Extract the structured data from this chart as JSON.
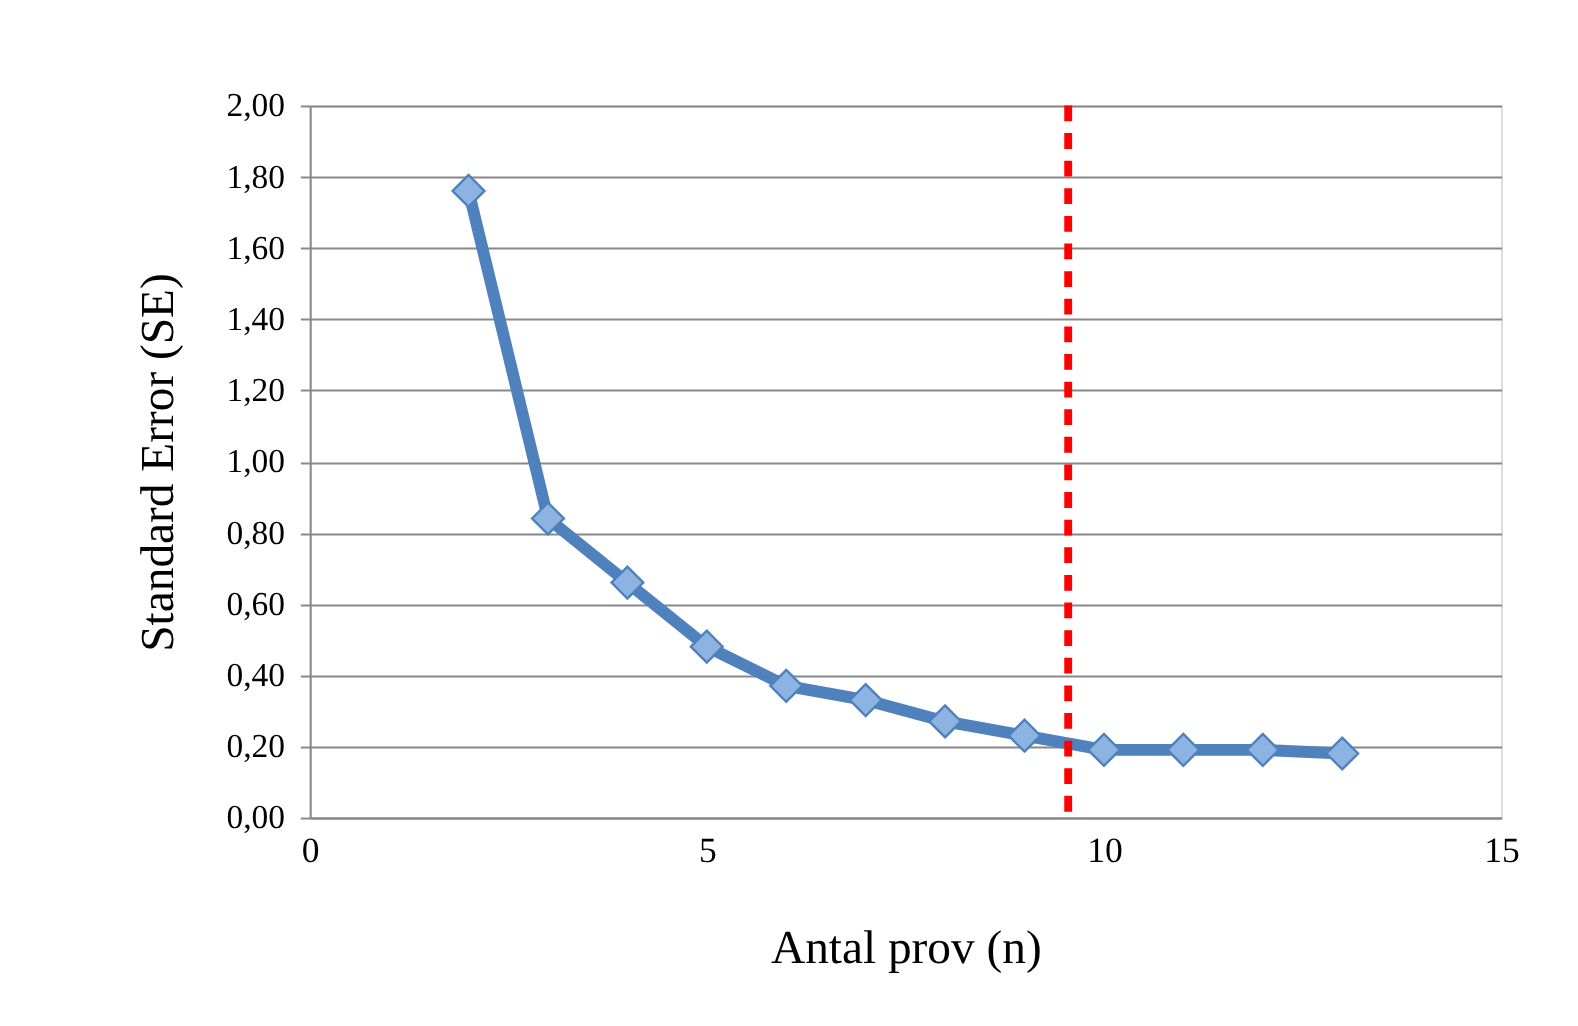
{
  "chart_data": {
    "type": "line",
    "xlabel": "Antal prov (n)",
    "ylabel": "Standard Error (SE)",
    "x": [
      2,
      3,
      4,
      5,
      6,
      7,
      8,
      9,
      10,
      11,
      12,
      13
    ],
    "series": [
      {
        "color": "#4f81bd",
        "values": [
          1.76,
          0.84,
          0.66,
          0.48,
          0.37,
          0.33,
          0.27,
          0.23,
          0.19,
          0.19,
          0.19,
          0.18
        ]
      }
    ],
    "marker": "diamond",
    "line_style": "solid",
    "xlim": [
      0,
      15
    ],
    "xticks": [
      0,
      5,
      10,
      15
    ],
    "ylim": [
      0,
      2
    ],
    "yticks": [
      {
        "value": 0,
        "label": "0,00"
      },
      {
        "value": 0.2,
        "label": "0,20"
      },
      {
        "value": 0.4,
        "label": "0,40"
      },
      {
        "value": 0.6,
        "label": "0,60"
      },
      {
        "value": 0.8,
        "label": "0,80"
      },
      {
        "value": 1.0,
        "label": "1,00"
      },
      {
        "value": 1.2,
        "label": "1,20"
      },
      {
        "value": 1.4,
        "label": "1,40"
      },
      {
        "value": 1.6,
        "label": "1,60"
      },
      {
        "value": 1.8,
        "label": "1,80"
      },
      {
        "value": 2.0,
        "label": "2,00"
      }
    ],
    "grid": "y",
    "ref_lines": [
      {
        "axis": "x",
        "value": 9.55,
        "color": "#ff0000",
        "line_style": "dashed"
      }
    ]
  }
}
